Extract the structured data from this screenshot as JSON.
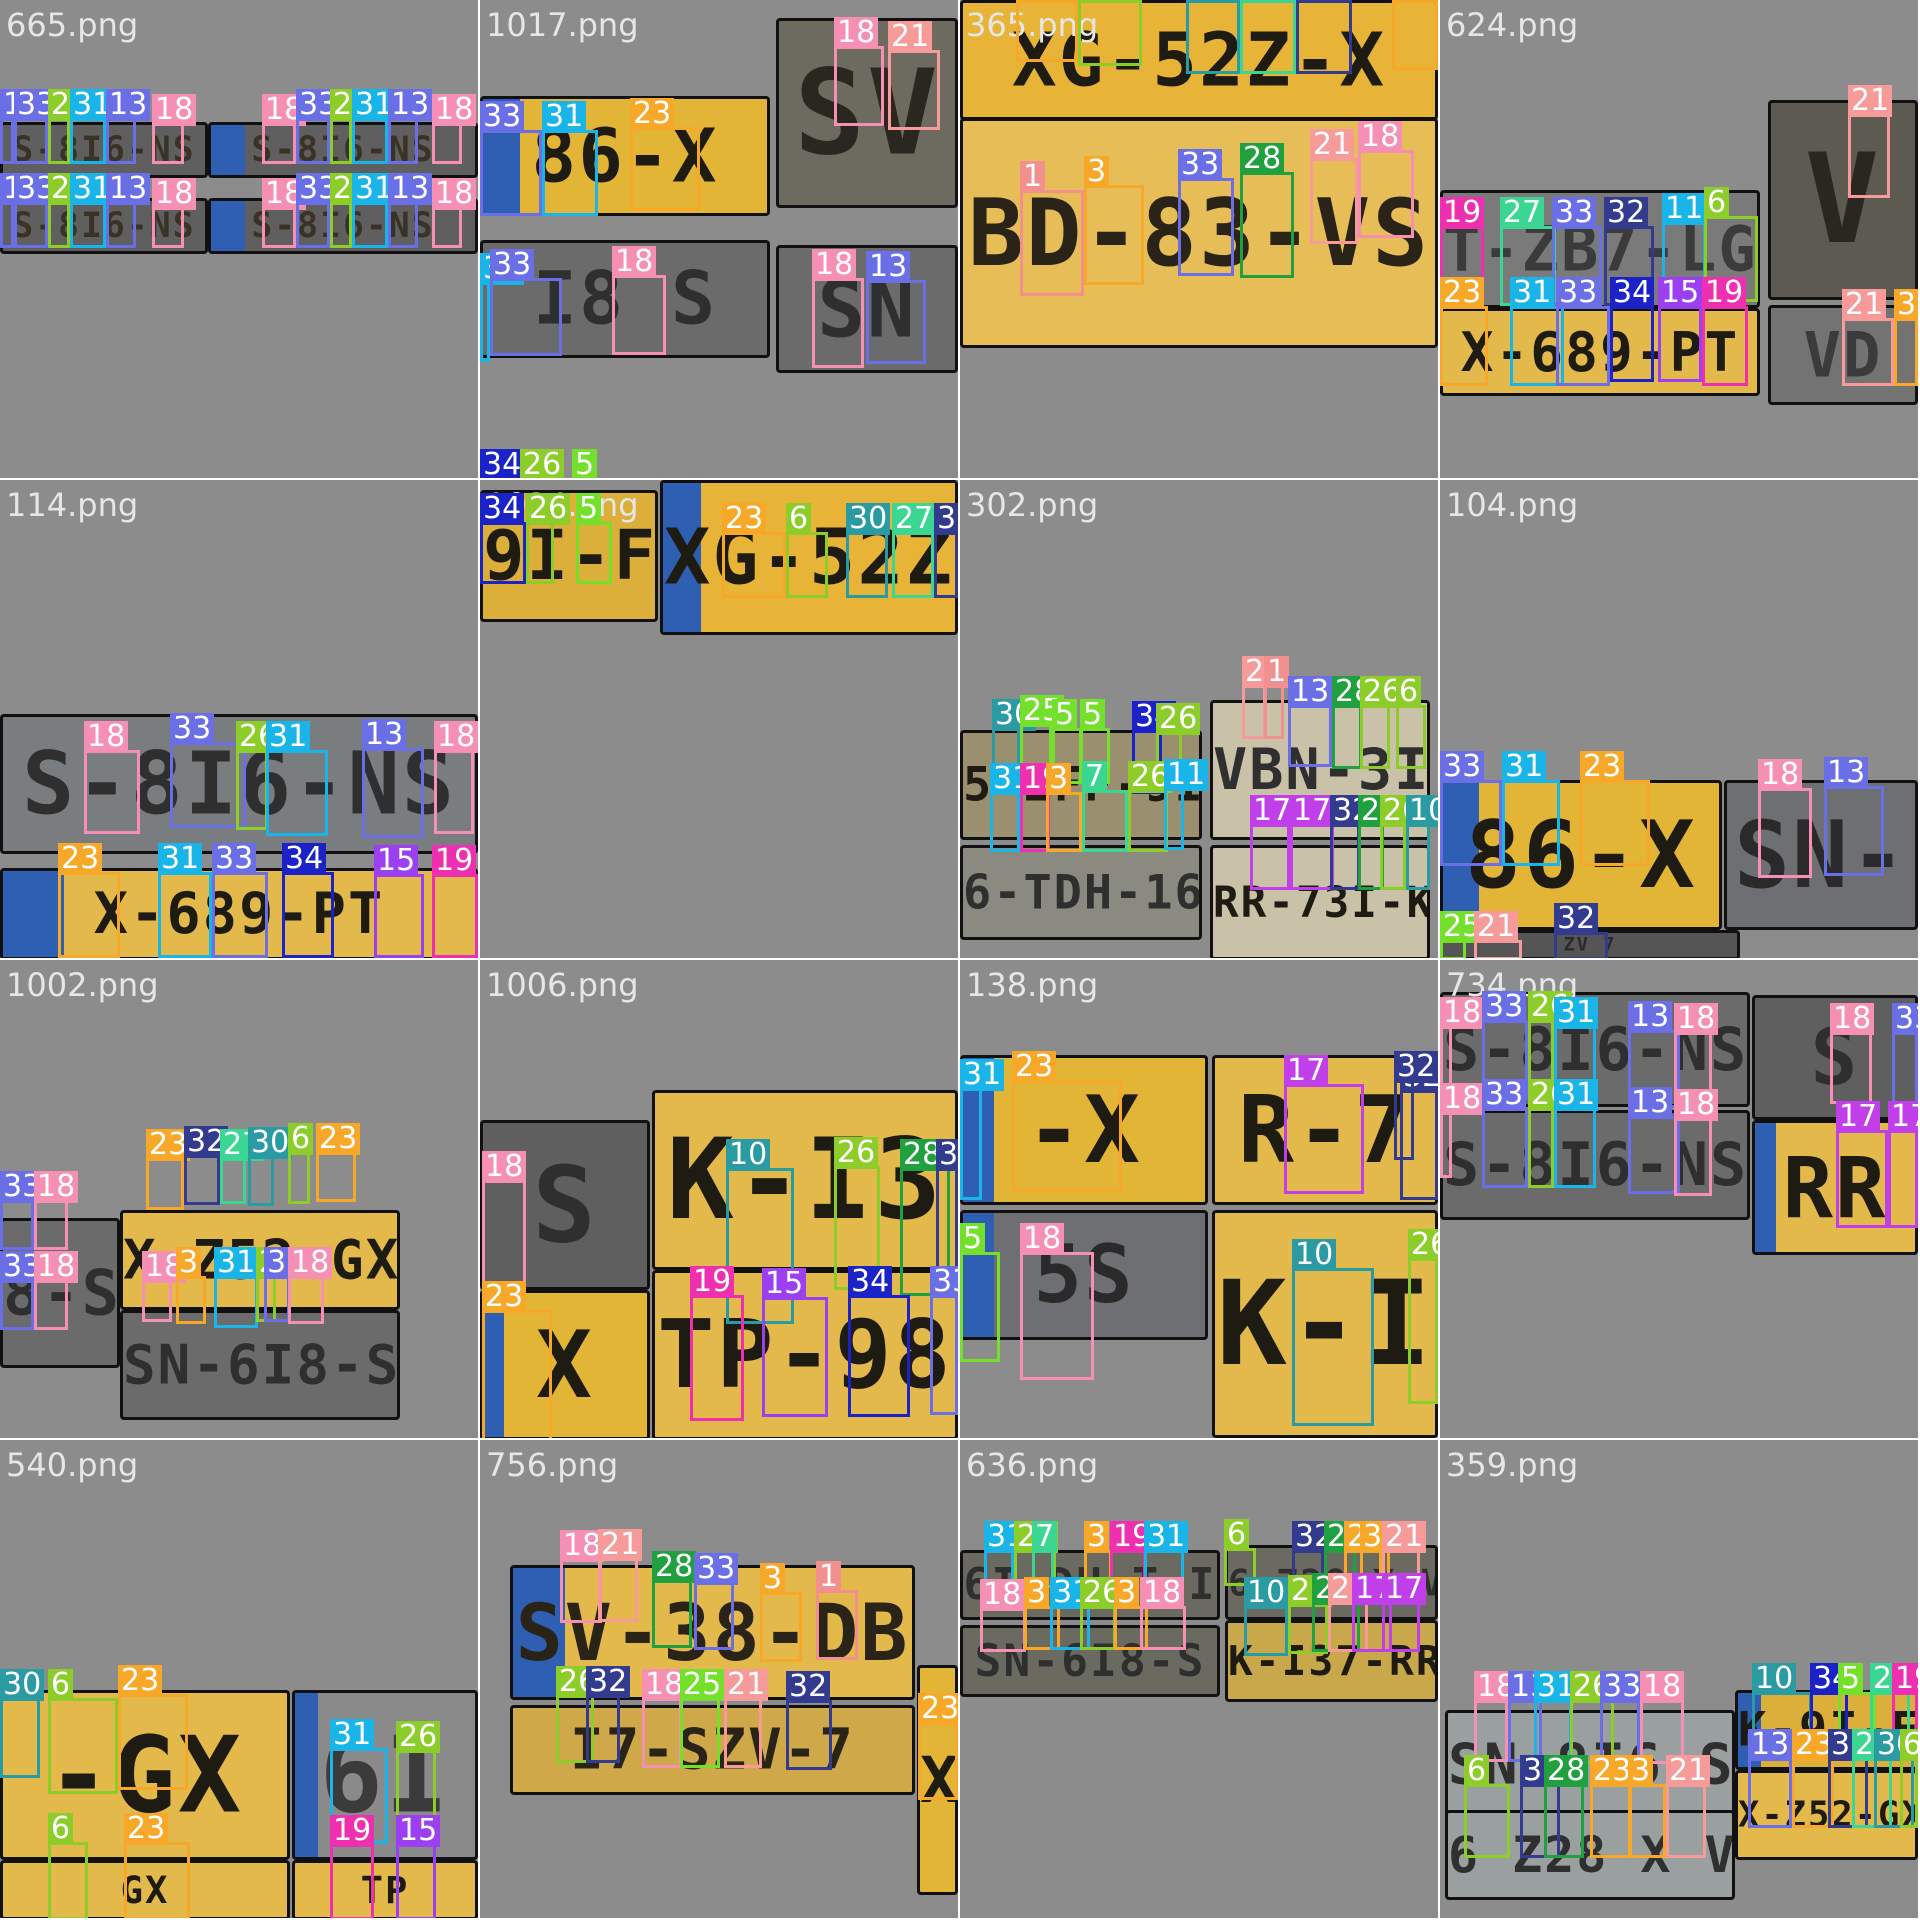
{
  "page": {
    "background": "#ffffff"
  },
  "class_colors": {
    "1": "#f28f8f",
    "3": "#f7a828",
    "5": "#74e02b",
    "6": "#8ccd2a",
    "7": "#3bd692",
    "10": "#2a9aa3",
    "11": "#19b4e8",
    "13": "#6a6fe6",
    "15": "#9b3ff0",
    "17": "#c03fe8",
    "18": "#f68fb4",
    "19": "#ee2fb0",
    "21": "#f79a9a",
    "23": "#f7a828",
    "25": "#74e02b",
    "26": "#8ccd2a",
    "27": "#3bd692",
    "28": "#21a040",
    "30": "#2a9aa3",
    "31": "#19b4e8",
    "32": "#333b8f",
    "33": "#6a6fe6",
    "34": "#1a22c8"
  },
  "tiles": [
    {
      "title": "665.png",
      "bg": "#8c8c8c",
      "plates": [
        {
          "text": "S-8I6-NS",
          "bg": "#5f5f5f",
          "fg": "#3a3325",
          "eu": false
        },
        {
          "text": "S-8I6-NS",
          "bg": "#5f5f5f",
          "fg": "#3a3325",
          "eu": true
        },
        {
          "text": "S-8I6-NS",
          "bg": "#5f5f5f",
          "fg": "#3a3325",
          "eu": false
        },
        {
          "text": "S-8I6-NS",
          "bg": "#5f5f5f",
          "fg": "#3a3325",
          "eu": true
        }
      ],
      "boxes": [
        "13",
        "33",
        "26",
        "31",
        "13",
        "18",
        "18",
        "33",
        "26",
        "31",
        "13",
        "18",
        "13",
        "33",
        "26",
        "31",
        "13",
        "18",
        "18",
        "33",
        "26",
        "31",
        "13",
        "18"
      ]
    },
    {
      "title": "1017.png",
      "bg": "#8c8c8c",
      "plates": [
        {
          "text": "86-X",
          "bg": "#e2b536",
          "fg": "#1e1b12",
          "eu": true
        },
        {
          "text": "SV",
          "bg": "#6d6a60",
          "fg": "#2a2720",
          "eu": false
        },
        {
          "text": "I8 S",
          "bg": "#6b6b6b",
          "fg": "#2f2f2f",
          "eu": false
        },
        {
          "text": "SN",
          "bg": "#6b6b6b",
          "fg": "#2f2f2f",
          "eu": false
        }
      ],
      "boxes": [
        "33",
        "31",
        "23",
        "18",
        "21",
        "31",
        "33",
        "18",
        "18",
        "13",
        "34",
        "26",
        "5"
      ]
    },
    {
      "title": "365.png",
      "bg": "#8c8c8c",
      "plates": [
        {
          "text": "XG-52Z-X",
          "bg": "#e7b438",
          "fg": "#1e1b12",
          "eu": false
        },
        {
          "text": "BD-83-VS",
          "bg": "#e7bd57",
          "fg": "#2a2418",
          "eu": false
        }
      ],
      "boxes": [
        "23",
        "6",
        "30",
        "27",
        "32",
        "23",
        "1",
        "3",
        "33",
        "28",
        "21",
        "18"
      ]
    },
    {
      "title": "624.png",
      "bg": "#8c8c8c",
      "plates": [
        {
          "text": "T-ZB7-LG",
          "bg": "#7a7a7a",
          "fg": "#3b3b3b",
          "eu": false
        },
        {
          "text": "X-689-PT",
          "bg": "#e3b94c",
          "fg": "#1e1b12",
          "eu": false
        },
        {
          "text": "V",
          "bg": "#5d5a52",
          "fg": "#2a2720",
          "eu": false
        },
        {
          "text": "VD",
          "bg": "#737373",
          "fg": "#3b3b3b",
          "eu": false
        }
      ],
      "boxes": [
        "19",
        "27",
        "33",
        "32",
        "11",
        "6",
        "23",
        "31",
        "33",
        "34",
        "15",
        "19",
        "21",
        "21",
        "3"
      ]
    },
    {
      "title": "114.png",
      "bg": "#8c8c8c",
      "plates": [
        {
          "text": "S-8I6-NS",
          "bg": "#7a7d80",
          "fg": "#2f2f2f",
          "eu": false
        },
        {
          "text": "X-689-PT",
          "bg": "#e3b94c",
          "fg": "#1e1b12",
          "eu": true
        }
      ],
      "boxes": [
        "18",
        "33",
        "26",
        "31",
        "13",
        "18",
        "23",
        "31",
        "33",
        "34",
        "15",
        "19"
      ]
    },
    {
      "title": "1034.png",
      "bg": "#8c8c8c",
      "plates": [
        {
          "text": "9I-F",
          "bg": "#dcae3a",
          "fg": "#1e1b12",
          "eu": false
        },
        {
          "text": "XG-52Z",
          "bg": "#e7b438",
          "fg": "#1e1b12",
          "eu": true
        }
      ],
      "boxes": [
        "34",
        "26",
        "5",
        "23",
        "6",
        "30",
        "27",
        "32"
      ]
    },
    {
      "title": "302.png",
      "bg": "#8c8c8c",
      "plates": [
        {
          "text": "5-ZFF-9I",
          "bg": "#9a9070",
          "fg": "#1e1b12",
          "eu": false
        },
        {
          "text": "6-TDH-16",
          "bg": "#8a8a80",
          "fg": "#2f2f2f",
          "eu": false
        },
        {
          "text": "VBN-3I",
          "bg": "#c9c2a8",
          "fg": "#2f2f2f",
          "eu": false
        },
        {
          "text": "RR-73I-K",
          "bg": "#c9c2a8",
          "fg": "#1e1b12",
          "eu": false
        }
      ],
      "boxes": [
        "30",
        "25",
        "5",
        "5",
        "34",
        "26",
        "21",
        "1",
        "13",
        "28",
        "26",
        "6",
        "31",
        "19",
        "3",
        "7",
        "26",
        "11",
        "17",
        "17",
        "32",
        "28",
        "26",
        "10"
      ]
    },
    {
      "title": "104.png",
      "bg": "#8c8c8c",
      "plates": [
        {
          "text": "86-X",
          "bg": "#e2b536",
          "fg": "#1e1b12",
          "eu": true
        },
        {
          "text": "SN-",
          "bg": "#6d6f72",
          "fg": "#2a2a2a",
          "eu": false
        },
        {
          "text": "ZV 7",
          "bg": "#555555",
          "fg": "#2a2a2a",
          "eu": false
        }
      ],
      "boxes": [
        "33",
        "31",
        "23",
        "18",
        "13",
        "25",
        "21",
        "32"
      ]
    },
    {
      "title": "1002.png",
      "bg": "#8c8c8c",
      "plates": [
        {
          "text": "8-S",
          "bg": "#6b6b6b",
          "fg": "#2f2f2f",
          "eu": false
        },
        {
          "text": "X-Z52-GX",
          "bg": "#e3b94c",
          "fg": "#1e1b12",
          "eu": false
        },
        {
          "text": "SN-6I8-S",
          "bg": "#6b6b6b",
          "fg": "#2f2f2f",
          "eu": false
        }
      ],
      "boxes": [
        "33",
        "18",
        "23",
        "32",
        "27",
        "30",
        "6",
        "23",
        "33",
        "18",
        "18",
        "3",
        "31",
        "26",
        "33",
        "18"
      ]
    },
    {
      "title": "1006.png",
      "bg": "#8c8c8c",
      "plates": [
        {
          "text": "S",
          "bg": "#5f5f5f",
          "fg": "#2f2f2f",
          "eu": false
        },
        {
          "text": "K-I3",
          "bg": "#e3b94c",
          "fg": "#1e1b12",
          "eu": false
        },
        {
          "text": "X",
          "bg": "#e2b536",
          "fg": "#1e1b12",
          "eu": true
        },
        {
          "text": "TP-98",
          "bg": "#e3b94c",
          "fg": "#1e1b12",
          "eu": false
        }
      ],
      "boxes": [
        "18",
        "10",
        "26",
        "28",
        "32",
        "23",
        "19",
        "15",
        "34",
        "33"
      ]
    },
    {
      "title": "138.png",
      "bg": "#8c8c8c",
      "plates": [
        {
          "text": "-X",
          "bg": "#e2b536",
          "fg": "#1e1b12",
          "eu": true
        },
        {
          "text": "R-7",
          "bg": "#e3b94c",
          "fg": "#1e1b12",
          "eu": false
        },
        {
          "text": "5S",
          "bg": "#6d6f72",
          "fg": "#2a2a2a",
          "eu": true
        },
        {
          "text": "K-I",
          "bg": "#e3b94c",
          "fg": "#1e1b12",
          "eu": false
        }
      ],
      "boxes": [
        "31",
        "23",
        "17",
        "32",
        "32",
        "5",
        "18",
        "10",
        "26"
      ]
    },
    {
      "title": "734.png",
      "bg": "#8c8c8c",
      "plates": [
        {
          "text": "S-8I6-NS",
          "bg": "#6b6b6b",
          "fg": "#2f2f2f",
          "eu": false
        },
        {
          "text": "S-8I6-NS",
          "bg": "#6b6b6b",
          "fg": "#2f2f2f",
          "eu": false
        },
        {
          "text": "S",
          "bg": "#5f5f5f",
          "fg": "#2f2f2f",
          "eu": false
        },
        {
          "text": "RR",
          "bg": "#e3b94c",
          "fg": "#1e1b12",
          "eu": true
        }
      ],
      "boxes": [
        "18",
        "33",
        "26",
        "31",
        "13",
        "18",
        "18",
        "33",
        "26",
        "31",
        "13",
        "18",
        "18",
        "33",
        "17",
        "17"
      ]
    },
    {
      "title": "540.png",
      "bg": "#8c8c8c",
      "plates": [
        {
          "text": "-GX",
          "bg": "#e3b94c",
          "fg": "#1e1b12",
          "eu": false
        },
        {
          "text": "6I",
          "bg": "#8a8a8a",
          "fg": "#3b3b3b",
          "eu": true
        },
        {
          "text": "GX",
          "bg": "#e3b94c",
          "fg": "#1e1b12",
          "eu": false
        },
        {
          "text": "TP",
          "bg": "#e3b94c",
          "fg": "#1e1b12",
          "eu": false
        }
      ],
      "boxes": [
        "30",
        "6",
        "23",
        "31",
        "26",
        "6",
        "23",
        "19",
        "15"
      ]
    },
    {
      "title": "756.png",
      "bg": "#8c8c8c",
      "plates": [
        {
          "text": "SV-38-DB",
          "bg": "#e3b94c",
          "fg": "#2a2418",
          "eu": true
        },
        {
          "text": "I7-SZV-7",
          "bg": "#cfa84a",
          "fg": "#2a2418",
          "eu": false
        },
        {
          "text": "X",
          "bg": "#e2b536",
          "fg": "#1e1b12",
          "eu": false
        }
      ],
      "boxes": [
        "18",
        "21",
        "28",
        "33",
        "3",
        "1",
        "26",
        "32",
        "18",
        "25",
        "21",
        "32",
        "23"
      ]
    },
    {
      "title": "636.png",
      "bg": "#8c8c8c",
      "plates": [
        {
          "text": "6I-DH-T-I",
          "bg": "#6b6a60",
          "fg": "#2f2f2f",
          "eu": false
        },
        {
          "text": "SN-6I8-S",
          "bg": "#6b6a60",
          "fg": "#2f2f2f",
          "eu": false
        },
        {
          "text": "6 Z28 X V",
          "bg": "#6b6a60",
          "fg": "#2f2f2f",
          "eu": false
        },
        {
          "text": "K-I37-RR",
          "bg": "#c9a84c",
          "fg": "#1e1b12",
          "eu": false
        }
      ],
      "boxes": [
        "31",
        "26",
        "7",
        "3",
        "19",
        "31",
        "6",
        "32",
        "28",
        "23",
        "3",
        "21",
        "18",
        "3",
        "31",
        "26",
        "3",
        "18",
        "10",
        "26",
        "28",
        "21",
        "17",
        "17"
      ]
    },
    {
      "title": "359.png",
      "bg": "#8c8c8c",
      "plates": [
        {
          "text": "SN-8I6-S",
          "bg": "#9aa0a0",
          "fg": "#2f2f2f",
          "eu": false
        },
        {
          "text": "6 Z28 X V",
          "bg": "#9aa0a0",
          "fg": "#2f2f2f",
          "eu": false
        },
        {
          "text": "K-9I-F",
          "bg": "#dcae3a",
          "fg": "#1e1b12",
          "eu": true
        },
        {
          "text": "X-Z52-GX",
          "bg": "#e3b94c",
          "fg": "#1e1b12",
          "eu": false
        }
      ],
      "boxes": [
        "18",
        "13",
        "31",
        "26",
        "33",
        "18",
        "6",
        "32",
        "28",
        "23",
        "3",
        "21",
        "10",
        "34",
        "5",
        "27",
        "19",
        "13",
        "23",
        "32",
        "27",
        "30",
        "6"
      ]
    }
  ]
}
